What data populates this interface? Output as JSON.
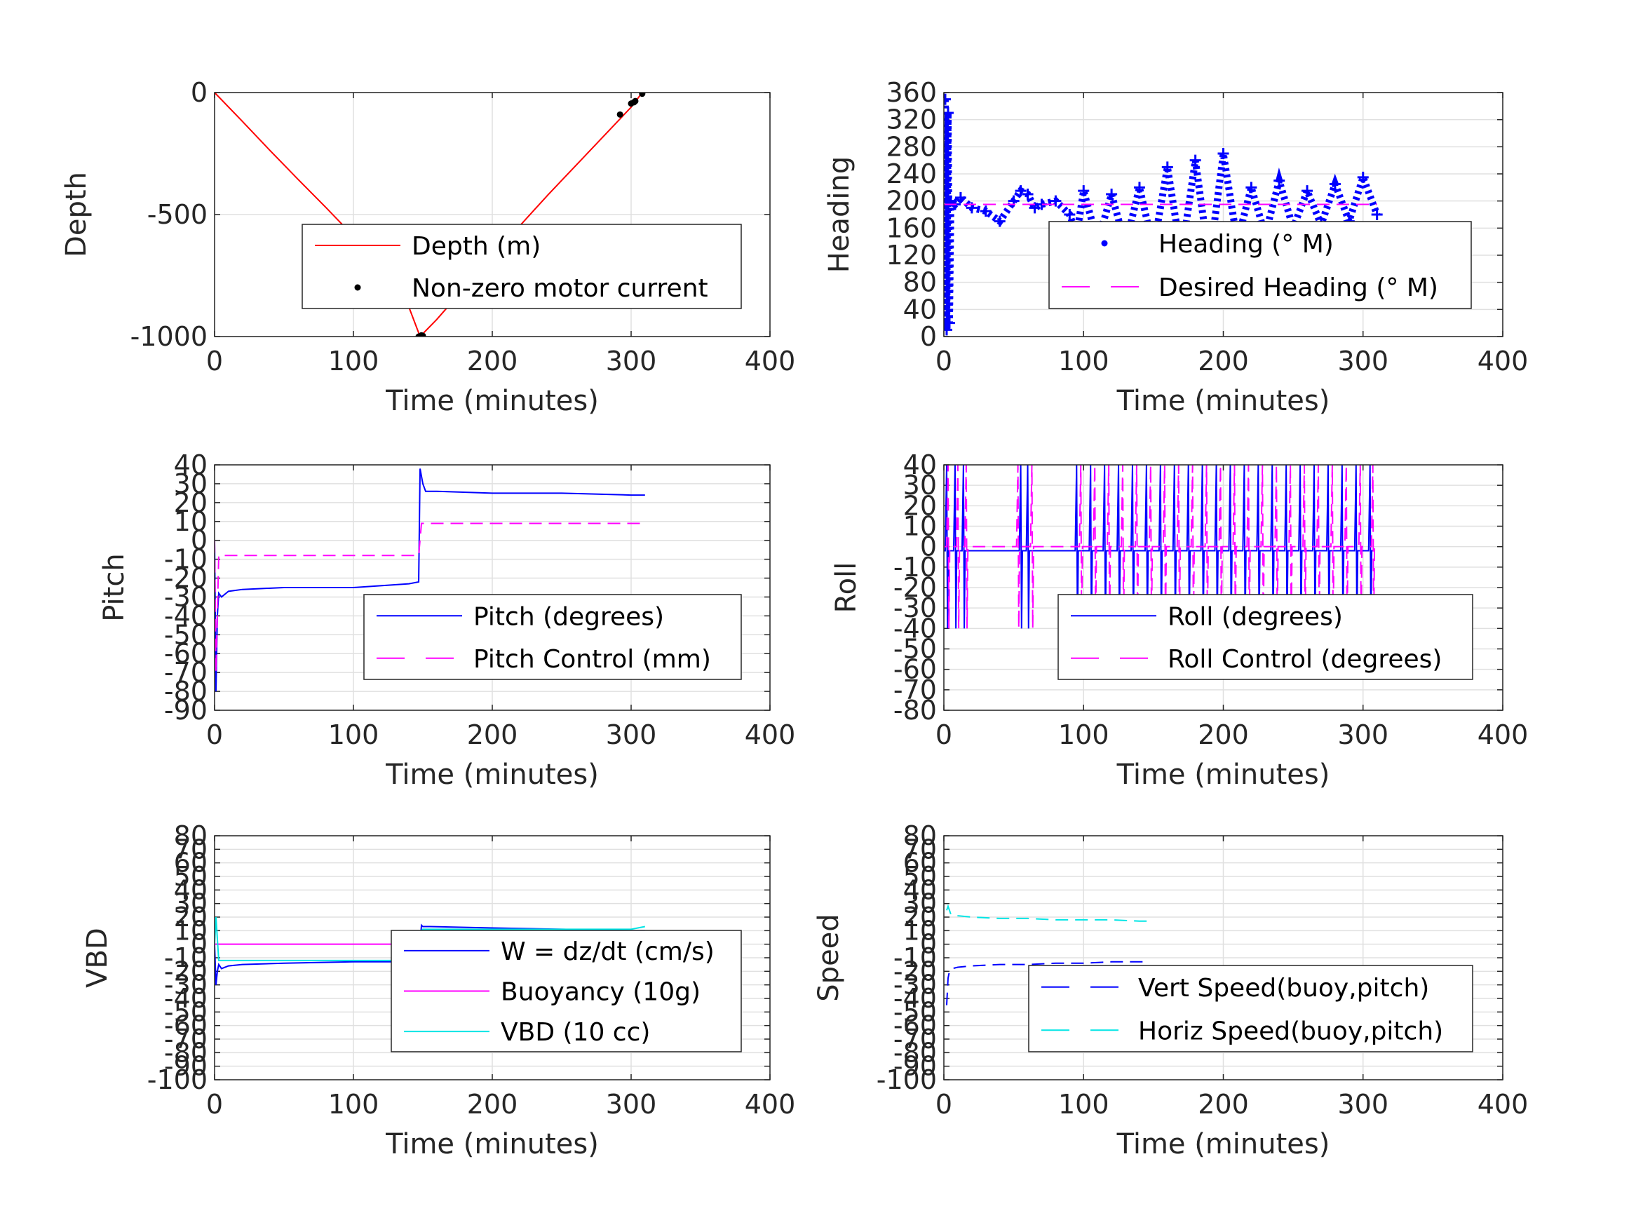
{
  "chart_data": [
    {
      "type": "line",
      "panel": "depth",
      "xlabel": "Time (minutes)",
      "ylabel": "Depth",
      "xlim": [
        0,
        400
      ],
      "ylim": [
        -1000,
        0
      ],
      "xticks": [
        0,
        100,
        200,
        300,
        400
      ],
      "yticks": [
        0,
        -500,
        -1000
      ],
      "grid": true,
      "legend_position": "lower-right",
      "series": [
        {
          "name": "Depth (m)",
          "style": "solid",
          "color": "#ff0000",
          "x": [
            0,
            20,
            40,
            60,
            80,
            100,
            120,
            140,
            148,
            160,
            180,
            200,
            220,
            240,
            260,
            280,
            300,
            308
          ],
          "y": [
            0,
            -118,
            -238,
            -355,
            -470,
            -588,
            -720,
            -880,
            -1000,
            -930,
            -800,
            -670,
            -545,
            -420,
            -300,
            -180,
            -60,
            0
          ]
        },
        {
          "name": "Non-zero motor current",
          "style": "markers",
          "color": "#000000",
          "x": [
            147,
            149,
            150,
            292,
            300,
            302,
            303,
            308
          ],
          "y": [
            -1000,
            -995,
            -997,
            -90,
            -45,
            -40,
            -35,
            -5
          ]
        }
      ]
    },
    {
      "type": "line",
      "panel": "heading",
      "xlabel": "Time (minutes)",
      "ylabel": "Heading",
      "xlim": [
        0,
        400
      ],
      "ylim": [
        0,
        360
      ],
      "xticks": [
        0,
        100,
        200,
        300,
        400
      ],
      "yticks": [
        0,
        40,
        80,
        120,
        160,
        200,
        240,
        280,
        320,
        360
      ],
      "grid": true,
      "legend_position": "lower-right",
      "series": [
        {
          "name": "Heading (° M)",
          "style": "markers",
          "color": "#0000ff",
          "x": [
            1,
            2,
            3,
            4,
            5,
            8,
            12,
            20,
            30,
            40,
            50,
            55,
            60,
            65,
            70,
            80,
            90,
            95,
            100,
            110,
            120,
            130,
            140,
            150,
            160,
            170,
            180,
            190,
            200,
            210,
            220,
            230,
            240,
            250,
            260,
            270,
            280,
            290,
            300,
            310
          ],
          "y": [
            350,
            10,
            330,
            20,
            200,
            195,
            205,
            190,
            185,
            170,
            200,
            215,
            210,
            190,
            195,
            200,
            180,
            150,
            215,
            140,
            210,
            135,
            220,
            130,
            250,
            120,
            260,
            110,
            270,
            140,
            220,
            150,
            230,
            160,
            215,
            165,
            225,
            170,
            235,
            180
          ]
        },
        {
          "name": "Desired Heading (° M)",
          "style": "dashed",
          "color": "#ff00ff",
          "x": [
            0,
            310
          ],
          "y": [
            195,
            195
          ]
        }
      ]
    },
    {
      "type": "line",
      "panel": "pitch",
      "xlabel": "Time (minutes)",
      "ylabel": "Pitch",
      "xlim": [
        0,
        400
      ],
      "ylim": [
        -90,
        40
      ],
      "xticks": [
        0,
        100,
        200,
        300,
        400
      ],
      "yticks": [
        40,
        30,
        20,
        10,
        0,
        -10,
        -20,
        -30,
        -40,
        -50,
        -60,
        -70,
        -80,
        -90
      ],
      "grid": true,
      "legend_position": "lower-right",
      "series": [
        {
          "name": "Pitch (degrees)",
          "style": "solid",
          "color": "#0000ff",
          "x": [
            0,
            1,
            2,
            3,
            5,
            10,
            20,
            50,
            100,
            140,
            147,
            148,
            150,
            152,
            160,
            200,
            250,
            300,
            310
          ],
          "y": [
            0,
            -80,
            -40,
            -28,
            -30,
            -27,
            -26,
            -25,
            -25,
            -23,
            -22,
            38,
            30,
            26,
            26,
            25,
            25,
            24,
            24
          ]
        },
        {
          "name": "Pitch Control (mm)",
          "style": "dashed",
          "color": "#ff00ff",
          "x": [
            0,
            1,
            3,
            10,
            50,
            100,
            147,
            149,
            152,
            200,
            250,
            300,
            310
          ],
          "y": [
            0,
            -70,
            -8,
            -8,
            -8,
            -8,
            -8,
            9,
            9,
            9,
            9,
            9,
            9
          ]
        }
      ]
    },
    {
      "type": "line",
      "panel": "roll",
      "xlabel": "Time (minutes)",
      "ylabel": "Roll",
      "xlim": [
        0,
        400
      ],
      "ylim": [
        -80,
        40
      ],
      "xticks": [
        0,
        100,
        200,
        300,
        400
      ],
      "yticks": [
        40,
        30,
        20,
        10,
        0,
        -10,
        -20,
        -30,
        -40,
        -50,
        -60,
        -70,
        -80
      ],
      "grid": true,
      "legend_position": "lower-right",
      "series": [
        {
          "name": "Roll (degrees)",
          "style": "solid",
          "color": "#0000ff",
          "spike_times": [
            2,
            8,
            14,
            55,
            60,
            95,
            105,
            115,
            125,
            135,
            145,
            155,
            165,
            175,
            185,
            195,
            205,
            215,
            225,
            235,
            245,
            255,
            265,
            275,
            285,
            295,
            305
          ],
          "baseline": -2
        },
        {
          "name": "Roll Control (degrees)",
          "style": "dashed",
          "color": "#ff00ff",
          "spike_times": [
            3,
            10,
            16,
            53,
            63,
            98,
            108,
            118,
            128,
            138,
            148,
            158,
            168,
            178,
            188,
            198,
            208,
            218,
            228,
            238,
            248,
            258,
            268,
            278,
            288,
            298,
            307
          ],
          "baseline": 0
        }
      ]
    },
    {
      "type": "line",
      "panel": "vbd",
      "xlabel": "Time (minutes)",
      "ylabel": "VBD",
      "xlim": [
        0,
        400
      ],
      "ylim": [
        -100,
        80
      ],
      "xticks": [
        0,
        100,
        200,
        300,
        400
      ],
      "yticks": [
        80,
        70,
        60,
        50,
        40,
        30,
        20,
        10,
        0,
        -10,
        -20,
        -30,
        -40,
        -50,
        -60,
        -70,
        -80,
        -90,
        -100
      ],
      "grid": true,
      "legend_position": "lower-right",
      "series": [
        {
          "name": "W = dz/dt (cm/s)",
          "style": "solid",
          "color": "#0000ff",
          "x": [
            0,
            1,
            2,
            3,
            5,
            10,
            20,
            50,
            100,
            140,
            147,
            149,
            150,
            155,
            200,
            250,
            300,
            310
          ],
          "y": [
            0,
            -30,
            -20,
            -15,
            -18,
            -16,
            -15,
            -14,
            -13,
            -13,
            -14,
            14,
            13,
            13,
            12,
            11,
            10,
            10
          ]
        },
        {
          "name": "Buoyancy (10g)",
          "style": "solid",
          "color": "#ff00ff",
          "x": [
            0,
            310
          ],
          "y": [
            0,
            0
          ]
        },
        {
          "name": "VBD (10 cc)",
          "style": "solid",
          "color": "#00e5e5",
          "x": [
            0,
            1,
            3,
            10,
            50,
            100,
            147,
            149,
            150,
            200,
            250,
            300,
            310
          ],
          "y": [
            0,
            20,
            -12,
            -12,
            -12,
            -12,
            -12,
            10,
            11,
            11,
            11,
            11,
            13
          ]
        }
      ]
    },
    {
      "type": "line",
      "panel": "speed",
      "xlabel": "Time (minutes)",
      "ylabel": "Speed",
      "xlim": [
        0,
        400
      ],
      "ylim": [
        -100,
        80
      ],
      "xticks": [
        0,
        100,
        200,
        300,
        400
      ],
      "yticks": [
        80,
        70,
        60,
        50,
        40,
        30,
        20,
        10,
        0,
        -10,
        -20,
        -30,
        -40,
        -50,
        -60,
        -70,
        -80,
        -90,
        -100
      ],
      "grid": true,
      "legend_position": "lower-right",
      "series": [
        {
          "name": "Vert Speed(buoy,pitch)",
          "style": "dashed",
          "color": "#0000ff",
          "x": [
            2,
            3,
            4,
            6,
            10,
            20,
            40,
            60,
            80,
            100,
            120,
            140,
            147
          ],
          "y": [
            -45,
            -25,
            -20,
            -18,
            -17,
            -16,
            -15,
            -15,
            -14,
            -14,
            -13,
            -13,
            -13
          ]
        },
        {
          "name": "Horiz Speed(buoy,pitch)",
          "style": "dashed",
          "color": "#00e5e5",
          "x": [
            2,
            3,
            5,
            10,
            20,
            40,
            60,
            80,
            100,
            120,
            140,
            147
          ],
          "y": [
            25,
            28,
            22,
            21,
            20,
            19,
            19,
            18,
            18,
            18,
            17,
            17
          ]
        }
      ]
    }
  ]
}
